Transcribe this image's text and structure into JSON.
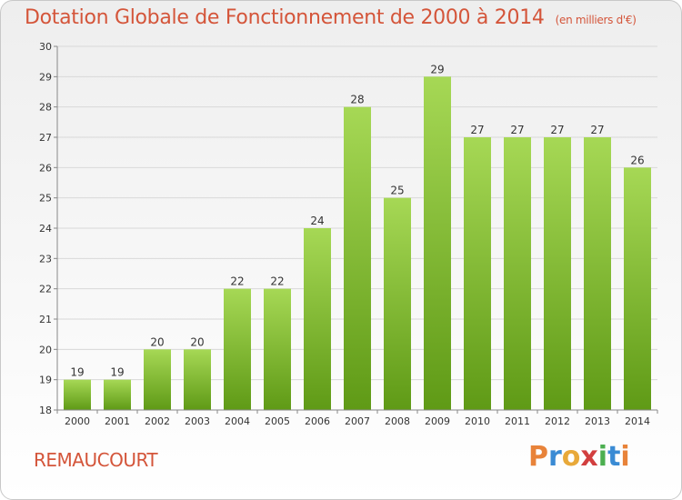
{
  "title": "Dotation Globale de Fonctionnement de 2000 à 2014",
  "subtitle": "(en milliers d'€)",
  "commune": "REMAUCOURT",
  "logo_text": "Proxiti",
  "colors": {
    "title": "#d4553a",
    "bar_light": "#a6d855",
    "bar_dark": "#5f9a16",
    "axis": "#888888",
    "grid": "#d8d8d8"
  },
  "chart_data": {
    "type": "bar",
    "categories": [
      "2000",
      "2001",
      "2002",
      "2003",
      "2004",
      "2005",
      "2006",
      "2007",
      "2008",
      "2009",
      "2010",
      "2011",
      "2012",
      "2013",
      "2014"
    ],
    "values": [
      19,
      19,
      20,
      20,
      22,
      22,
      24,
      28,
      25,
      29,
      27,
      27,
      27,
      27,
      26
    ],
    "ylim": [
      18,
      30
    ],
    "yticks": [
      18,
      19,
      20,
      21,
      22,
      23,
      24,
      25,
      26,
      27,
      28,
      29,
      30
    ],
    "grid": true,
    "data_labels": true
  }
}
